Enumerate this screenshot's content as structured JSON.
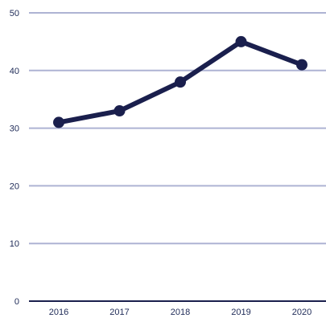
{
  "chart_data": {
    "type": "line",
    "title": "",
    "xlabel": "",
    "ylabel": "",
    "categories": [
      "2016",
      "2017",
      "2018",
      "2019",
      "2020"
    ],
    "series": [
      {
        "values": [
          31,
          33,
          38,
          45,
          41
        ]
      }
    ],
    "ylim": [
      0,
      50
    ],
    "yticks": [
      "0",
      "10",
      "20",
      "30",
      "40",
      "50"
    ],
    "grid": true,
    "colors": {
      "line": "#1a1f4d",
      "grid": "#aeb3d3",
      "axis": "#1a1f4d",
      "text": "#1e2a57"
    }
  }
}
